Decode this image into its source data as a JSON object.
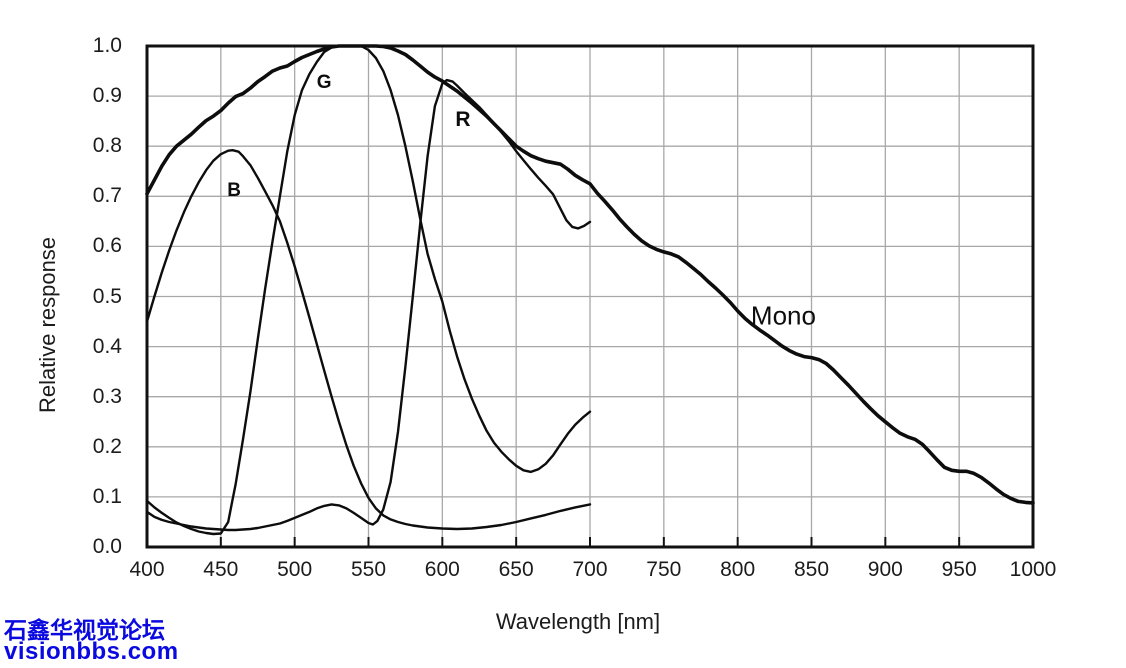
{
  "chart_data": {
    "type": "line",
    "title": "",
    "xlabel": "Wavelength [nm]",
    "ylabel": "Relative response",
    "xlim": [
      400,
      1000
    ],
    "ylim": [
      0.0,
      1.0
    ],
    "grid": true,
    "x_ticks": [
      400,
      450,
      500,
      550,
      600,
      650,
      700,
      750,
      800,
      850,
      900,
      950,
      1000
    ],
    "y_ticks": [
      {
        "value": 0.0,
        "label": "0.0"
      },
      {
        "value": 0.1,
        "label": "0.1"
      },
      {
        "value": 0.2,
        "label": "0.2"
      },
      {
        "value": 0.3,
        "label": "0.3"
      },
      {
        "value": 0.4,
        "label": "0.4"
      },
      {
        "value": 0.5,
        "label": "0.5"
      },
      {
        "value": 0.6,
        "label": "0.6"
      },
      {
        "value": 0.7,
        "label": "0.7"
      },
      {
        "value": 0.8,
        "label": "0.8"
      },
      {
        "value": 0.9,
        "label": "0.9"
      },
      {
        "value": 1.0,
        "label": "1.0"
      }
    ],
    "series": [
      {
        "name": "B",
        "label": "B",
        "label_at": [
          459,
          0.71
        ],
        "points": [
          [
            400,
            0.45
          ],
          [
            405,
            0.5
          ],
          [
            410,
            0.548
          ],
          [
            415,
            0.592
          ],
          [
            420,
            0.632
          ],
          [
            425,
            0.668
          ],
          [
            430,
            0.7
          ],
          [
            435,
            0.728
          ],
          [
            440,
            0.752
          ],
          [
            445,
            0.771
          ],
          [
            450,
            0.784
          ],
          [
            455,
            0.791
          ],
          [
            458,
            0.792
          ],
          [
            462,
            0.789
          ],
          [
            465,
            0.78
          ],
          [
            470,
            0.762
          ],
          [
            475,
            0.737
          ],
          [
            480,
            0.71
          ],
          [
            485,
            0.682
          ],
          [
            490,
            0.65
          ],
          [
            495,
            0.607
          ],
          [
            500,
            0.56
          ],
          [
            505,
            0.51
          ],
          [
            510,
            0.458
          ],
          [
            515,
            0.405
          ],
          [
            520,
            0.352
          ],
          [
            525,
            0.3
          ],
          [
            530,
            0.25
          ],
          [
            535,
            0.203
          ],
          [
            540,
            0.162
          ],
          [
            545,
            0.127
          ],
          [
            550,
            0.098
          ],
          [
            555,
            0.077
          ],
          [
            560,
            0.063
          ],
          [
            565,
            0.055
          ],
          [
            570,
            0.05
          ],
          [
            575,
            0.046
          ],
          [
            580,
            0.043
          ],
          [
            585,
            0.041
          ],
          [
            590,
            0.039
          ],
          [
            595,
            0.038
          ],
          [
            600,
            0.037
          ],
          [
            610,
            0.036
          ],
          [
            620,
            0.037
          ],
          [
            630,
            0.04
          ],
          [
            640,
            0.044
          ],
          [
            650,
            0.05
          ],
          [
            660,
            0.057
          ],
          [
            670,
            0.064
          ],
          [
            680,
            0.072
          ],
          [
            690,
            0.079
          ],
          [
            700,
            0.085
          ]
        ]
      },
      {
        "name": "G",
        "label": "G",
        "label_at": [
          520,
          0.927
        ],
        "points": [
          [
            400,
            0.092
          ],
          [
            405,
            0.079
          ],
          [
            410,
            0.068
          ],
          [
            415,
            0.058
          ],
          [
            420,
            0.049
          ],
          [
            425,
            0.042
          ],
          [
            430,
            0.036
          ],
          [
            435,
            0.031
          ],
          [
            440,
            0.028
          ],
          [
            445,
            0.026
          ],
          [
            450,
            0.027
          ],
          [
            455,
            0.05
          ],
          [
            458,
            0.095
          ],
          [
            460,
            0.125
          ],
          [
            465,
            0.215
          ],
          [
            470,
            0.31
          ],
          [
            475,
            0.415
          ],
          [
            480,
            0.515
          ],
          [
            485,
            0.61
          ],
          [
            490,
            0.7
          ],
          [
            495,
            0.79
          ],
          [
            500,
            0.862
          ],
          [
            505,
            0.912
          ],
          [
            510,
            0.944
          ],
          [
            515,
            0.968
          ],
          [
            520,
            0.988
          ],
          [
            525,
            0.997
          ],
          [
            530,
            1.0
          ],
          [
            545,
            1.0
          ],
          [
            550,
            0.992
          ],
          [
            555,
            0.976
          ],
          [
            560,
            0.95
          ],
          [
            565,
            0.912
          ],
          [
            570,
            0.862
          ],
          [
            575,
            0.8
          ],
          [
            580,
            0.73
          ],
          [
            585,
            0.655
          ],
          [
            590,
            0.585
          ],
          [
            595,
            0.535
          ],
          [
            600,
            0.49
          ],
          [
            605,
            0.432
          ],
          [
            610,
            0.38
          ],
          [
            615,
            0.335
          ],
          [
            620,
            0.296
          ],
          [
            625,
            0.262
          ],
          [
            630,
            0.232
          ],
          [
            635,
            0.208
          ],
          [
            640,
            0.19
          ],
          [
            645,
            0.175
          ],
          [
            650,
            0.162
          ],
          [
            655,
            0.153
          ],
          [
            660,
            0.15
          ],
          [
            665,
            0.155
          ],
          [
            670,
            0.166
          ],
          [
            675,
            0.183
          ],
          [
            680,
            0.205
          ],
          [
            685,
            0.226
          ],
          [
            690,
            0.244
          ],
          [
            695,
            0.258
          ],
          [
            700,
            0.27
          ]
        ]
      },
      {
        "name": "R",
        "label": "R",
        "label_at": [
          614,
          0.852
        ],
        "points": [
          [
            400,
            0.07
          ],
          [
            405,
            0.06
          ],
          [
            410,
            0.054
          ],
          [
            415,
            0.05
          ],
          [
            420,
            0.047
          ],
          [
            425,
            0.044
          ],
          [
            430,
            0.041
          ],
          [
            435,
            0.039
          ],
          [
            440,
            0.037
          ],
          [
            445,
            0.036
          ],
          [
            450,
            0.035
          ],
          [
            455,
            0.034
          ],
          [
            460,
            0.034
          ],
          [
            465,
            0.035
          ],
          [
            470,
            0.036
          ],
          [
            475,
            0.038
          ],
          [
            480,
            0.041
          ],
          [
            485,
            0.044
          ],
          [
            490,
            0.047
          ],
          [
            495,
            0.052
          ],
          [
            500,
            0.058
          ],
          [
            505,
            0.064
          ],
          [
            510,
            0.07
          ],
          [
            515,
            0.077
          ],
          [
            520,
            0.082
          ],
          [
            525,
            0.085
          ],
          [
            530,
            0.083
          ],
          [
            535,
            0.077
          ],
          [
            540,
            0.068
          ],
          [
            545,
            0.058
          ],
          [
            550,
            0.048
          ],
          [
            553,
            0.045
          ],
          [
            556,
            0.052
          ],
          [
            560,
            0.075
          ],
          [
            565,
            0.13
          ],
          [
            570,
            0.23
          ],
          [
            575,
            0.36
          ],
          [
            580,
            0.5
          ],
          [
            585,
            0.645
          ],
          [
            590,
            0.78
          ],
          [
            595,
            0.88
          ],
          [
            600,
            0.925
          ],
          [
            603,
            0.932
          ],
          [
            607,
            0.929
          ],
          [
            610,
            0.921
          ],
          [
            615,
            0.906
          ],
          [
            620,
            0.892
          ],
          [
            625,
            0.878
          ],
          [
            630,
            0.862
          ],
          [
            635,
            0.846
          ],
          [
            640,
            0.828
          ],
          [
            645,
            0.81
          ],
          [
            650,
            0.79
          ],
          [
            655,
            0.772
          ],
          [
            660,
            0.754
          ],
          [
            665,
            0.737
          ],
          [
            670,
            0.721
          ],
          [
            675,
            0.704
          ],
          [
            680,
            0.675
          ],
          [
            684,
            0.652
          ],
          [
            688,
            0.639
          ],
          [
            692,
            0.636
          ],
          [
            696,
            0.641
          ],
          [
            700,
            0.649
          ]
        ]
      },
      {
        "name": "Mono",
        "label": "Mono",
        "label_at": [
          831,
          0.462
        ],
        "points": [
          [
            400,
            0.705
          ],
          [
            410,
            0.76
          ],
          [
            415,
            0.783
          ],
          [
            420,
            0.8
          ],
          [
            425,
            0.812
          ],
          [
            430,
            0.824
          ],
          [
            435,
            0.838
          ],
          [
            440,
            0.851
          ],
          [
            445,
            0.86
          ],
          [
            450,
            0.871
          ],
          [
            455,
            0.886
          ],
          [
            460,
            0.899
          ],
          [
            465,
            0.905
          ],
          [
            470,
            0.916
          ],
          [
            475,
            0.929
          ],
          [
            480,
            0.939
          ],
          [
            485,
            0.95
          ],
          [
            490,
            0.956
          ],
          [
            495,
            0.96
          ],
          [
            500,
            0.969
          ],
          [
            505,
            0.977
          ],
          [
            510,
            0.983
          ],
          [
            515,
            0.989
          ],
          [
            520,
            0.994
          ],
          [
            525,
            0.998
          ],
          [
            530,
            1.0
          ],
          [
            555,
            1.0
          ],
          [
            560,
            0.999
          ],
          [
            565,
            0.996
          ],
          [
            570,
            0.99
          ],
          [
            575,
            0.983
          ],
          [
            580,
            0.972
          ],
          [
            585,
            0.96
          ],
          [
            590,
            0.948
          ],
          [
            595,
            0.938
          ],
          [
            600,
            0.93
          ],
          [
            605,
            0.92
          ],
          [
            610,
            0.91
          ],
          [
            615,
            0.898
          ],
          [
            620,
            0.886
          ],
          [
            625,
            0.873
          ],
          [
            630,
            0.86
          ],
          [
            635,
            0.845
          ],
          [
            640,
            0.83
          ],
          [
            645,
            0.815
          ],
          [
            650,
            0.8
          ],
          [
            655,
            0.79
          ],
          [
            660,
            0.781
          ],
          [
            665,
            0.775
          ],
          [
            670,
            0.77
          ],
          [
            675,
            0.767
          ],
          [
            680,
            0.764
          ],
          [
            685,
            0.754
          ],
          [
            690,
            0.742
          ],
          [
            695,
            0.733
          ],
          [
            700,
            0.725
          ],
          [
            705,
            0.706
          ],
          [
            710,
            0.69
          ],
          [
            715,
            0.673
          ],
          [
            720,
            0.655
          ],
          [
            725,
            0.639
          ],
          [
            730,
            0.624
          ],
          [
            735,
            0.611
          ],
          [
            740,
            0.601
          ],
          [
            745,
            0.594
          ],
          [
            750,
            0.589
          ],
          [
            755,
            0.585
          ],
          [
            760,
            0.579
          ],
          [
            765,
            0.568
          ],
          [
            770,
            0.556
          ],
          [
            775,
            0.544
          ],
          [
            780,
            0.53
          ],
          [
            785,
            0.517
          ],
          [
            790,
            0.503
          ],
          [
            795,
            0.488
          ],
          [
            800,
            0.471
          ],
          [
            805,
            0.456
          ],
          [
            810,
            0.444
          ],
          [
            815,
            0.433
          ],
          [
            820,
            0.423
          ],
          [
            825,
            0.412
          ],
          [
            830,
            0.401
          ],
          [
            835,
            0.392
          ],
          [
            840,
            0.385
          ],
          [
            845,
            0.38
          ],
          [
            850,
            0.378
          ],
          [
            855,
            0.374
          ],
          [
            860,
            0.366
          ],
          [
            865,
            0.353
          ],
          [
            870,
            0.338
          ],
          [
            875,
            0.323
          ],
          [
            880,
            0.307
          ],
          [
            885,
            0.291
          ],
          [
            890,
            0.276
          ],
          [
            895,
            0.262
          ],
          [
            900,
            0.25
          ],
          [
            905,
            0.238
          ],
          [
            910,
            0.227
          ],
          [
            915,
            0.22
          ],
          [
            920,
            0.215
          ],
          [
            925,
            0.205
          ],
          [
            930,
            0.19
          ],
          [
            935,
            0.174
          ],
          [
            940,
            0.159
          ],
          [
            945,
            0.153
          ],
          [
            950,
            0.151
          ],
          [
            955,
            0.151
          ],
          [
            960,
            0.147
          ],
          [
            965,
            0.139
          ],
          [
            970,
            0.128
          ],
          [
            975,
            0.116
          ],
          [
            980,
            0.105
          ],
          [
            985,
            0.097
          ],
          [
            990,
            0.091
          ],
          [
            995,
            0.089
          ],
          [
            1000,
            0.088
          ]
        ]
      }
    ],
    "styles": {
      "curve_color": "#0d0d0d",
      "mono_stroke_width": 3.6,
      "rgb_stroke_width": 2.4,
      "grid_color": "#a8a8a8",
      "border_color": "#111111"
    }
  },
  "watermark": {
    "line1": "石鑫华视觉论坛",
    "line2": "visionbbs.com",
    "color": "#0a0ae0"
  }
}
